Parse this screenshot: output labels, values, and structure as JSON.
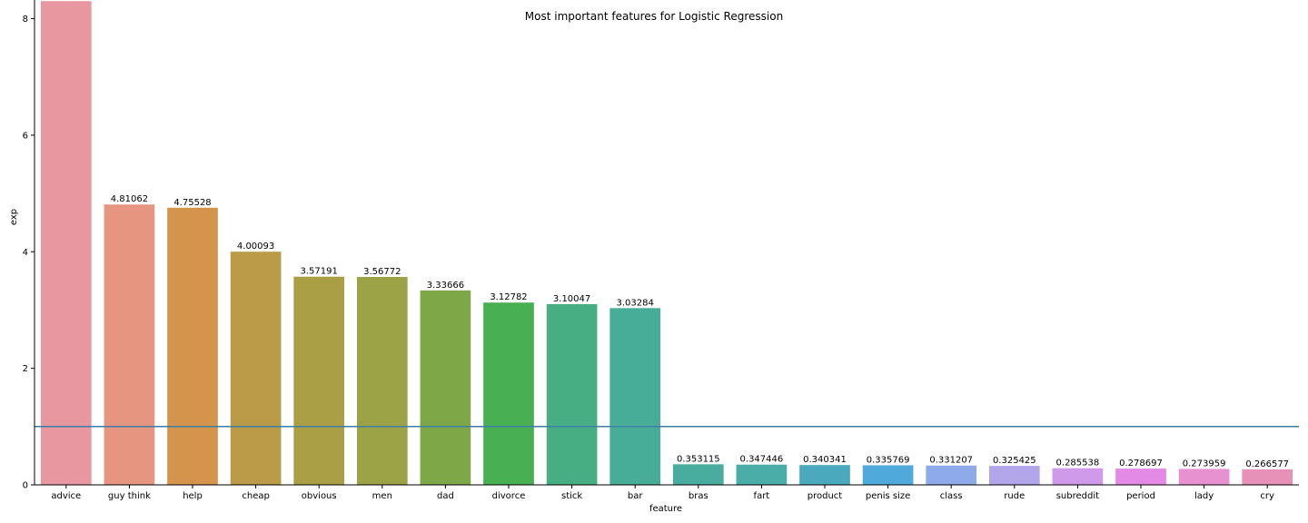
{
  "chart_data": {
    "type": "bar",
    "title": "Most important features for Logistic Regression",
    "xlabel": "feature",
    "ylabel": "exp",
    "ylim": [
      0,
      8.3
    ],
    "yticks": [
      0,
      2,
      4,
      6,
      8
    ],
    "reference_line": 1,
    "categories": [
      "advice",
      "guy think",
      "help",
      "cheap",
      "obvious",
      "men",
      "dad",
      "divorce",
      "stick",
      "bar",
      "bras",
      "fart",
      "product",
      "penis size",
      "class",
      "rude",
      "subreddit",
      "period",
      "lady",
      "cry"
    ],
    "values": [
      8.6,
      4.81062,
      4.75528,
      4.00093,
      3.57191,
      3.56772,
      3.33666,
      3.12782,
      3.10047,
      3.03284,
      0.353115,
      0.347446,
      0.340341,
      0.335769,
      0.331207,
      0.325425,
      0.285538,
      0.278697,
      0.273959,
      0.266577
    ],
    "data_labels": [
      "",
      "4.81062",
      "4.75528",
      "4.00093",
      "3.57191",
      "3.56772",
      "3.33666",
      "3.12782",
      "3.10047",
      "3.03284",
      "0.353115",
      "0.347446",
      "0.340341",
      "0.335769",
      "0.331207",
      "0.325425",
      "0.285538",
      "0.278697",
      "0.273959",
      "0.266577"
    ],
    "colors": [
      "#e8969f",
      "#e59580",
      "#d5944b",
      "#bb9b47",
      "#aa9f45",
      "#9ba346",
      "#7ea847",
      "#48b052",
      "#47ae83",
      "#48ad98",
      "#48ac9e",
      "#4aada8",
      "#4aa9bc",
      "#4faadb",
      "#8eaaea",
      "#b3a5ea",
      "#d09aeb",
      "#e38ae6",
      "#e891d0",
      "#e891b8"
    ],
    "reference_line_color": "#3d7ea6",
    "grid": false,
    "legend": "none"
  }
}
